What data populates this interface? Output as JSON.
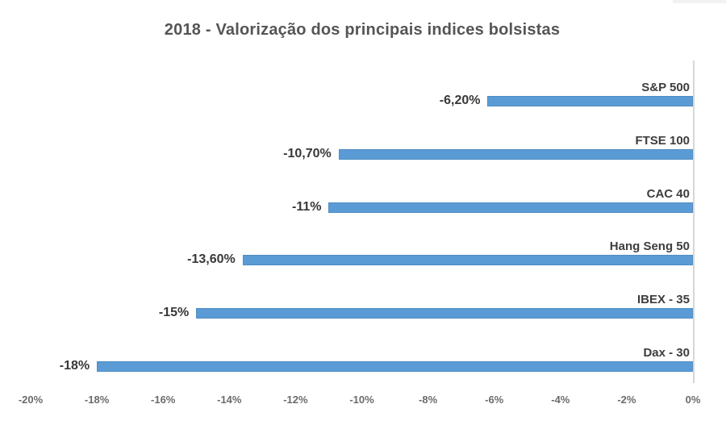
{
  "title": "2018 - Valorização dos principais indices bolsistas",
  "colors": {
    "bar_fill": "#5B9BD5",
    "axis_line": "#d6d6d6",
    "title_text": "#555555",
    "category_text": "#3d3d3d",
    "value_text": "#383838",
    "tick_text": "#6b6b6b"
  },
  "chart_data": {
    "type": "bar",
    "orientation": "horizontal",
    "title": "2018 - Valorização dos principais indices bolsistas",
    "categories": [
      "S&P 500",
      "FTSE 100",
      "CAC 40",
      "Hang Seng 50",
      "IBEX - 35",
      "Dax - 30"
    ],
    "values": [
      -6.2,
      -10.7,
      -11,
      -13.6,
      -15,
      -18
    ],
    "value_labels": [
      "-6,20%",
      "-10,70%",
      "-11%",
      "-13,60%",
      "-15%",
      "-18%"
    ],
    "xlabel": "",
    "ylabel": "",
    "xlim": [
      -20,
      0
    ],
    "x_tick_labels": [
      "-20%",
      "-18%",
      "-16%",
      "-14%",
      "-12%",
      "-10%",
      "-8%",
      "-6%",
      "-4%",
      "-2%",
      "0%"
    ],
    "grid": false,
    "legend": false,
    "value_axis_position": "right",
    "category_label_position": "above-bar-right",
    "value_label_position": "left-of-bar"
  }
}
